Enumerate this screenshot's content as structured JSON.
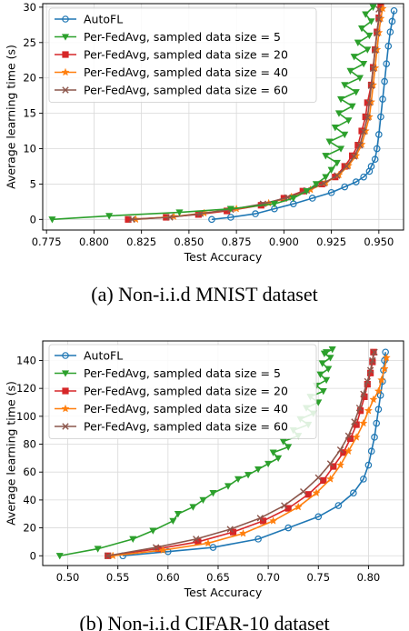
{
  "chart_data": [
    {
      "type": "line",
      "caption": "(a) Non-i.i.d MNIST dataset",
      "xlabel": "Test Accuracy",
      "ylabel": "Average learning time (s)",
      "xlim": [
        0.773,
        0.963
      ],
      "ylim": [
        -1.5,
        30.5
      ],
      "xticks": [
        0.775,
        0.8,
        0.825,
        0.85,
        0.875,
        0.9,
        0.925,
        0.95
      ],
      "xtick_labels": [
        "0.775",
        "0.800",
        "0.825",
        "0.850",
        "0.875",
        "0.900",
        "0.925",
        "0.950"
      ],
      "yticks": [
        0,
        5,
        10,
        15,
        20,
        25,
        30
      ],
      "ytick_labels": [
        "0",
        "5",
        "10",
        "15",
        "20",
        "25",
        "30"
      ],
      "grid": true,
      "legend_position": "top-left",
      "series": [
        {
          "name": "AutoFL",
          "color": "#1f77b4",
          "marker": "circle",
          "x": [
            0.862,
            0.872,
            0.885,
            0.895,
            0.905,
            0.915,
            0.925,
            0.932,
            0.938,
            0.942,
            0.945,
            0.946,
            0.948,
            0.949,
            0.95,
            0.951,
            0.952,
            0.953,
            0.954,
            0.955,
            0.956,
            0.957,
            0.958
          ],
          "y": [
            0,
            0.3,
            0.8,
            1.5,
            2.2,
            3.0,
            3.8,
            4.6,
            5.3,
            6.0,
            6.8,
            7.5,
            8.5,
            10.0,
            12.0,
            14.5,
            17.0,
            19.5,
            22.0,
            24.5,
            26.5,
            28.0,
            29.5
          ]
        },
        {
          "name": "Per-FedAvg, sampled data size = 5",
          "color": "#2ca02c",
          "marker": "triangle-down",
          "x": [
            0.778,
            0.808,
            0.845,
            0.872,
            0.895,
            0.905,
            0.912,
            0.917,
            0.922,
            0.925,
            0.928,
            0.922,
            0.93,
            0.924,
            0.932,
            0.927,
            0.934,
            0.929,
            0.936,
            0.93,
            0.938,
            0.932,
            0.94,
            0.935,
            0.942,
            0.937,
            0.944,
            0.939,
            0.945,
            0.941,
            0.946,
            0.943,
            0.947
          ],
          "y": [
            0,
            0.5,
            1.0,
            1.5,
            2.2,
            3.0,
            4.0,
            5.0,
            6.0,
            7.0,
            8.0,
            9.0,
            10.0,
            11.0,
            12.0,
            13.0,
            14.0,
            15.0,
            16.0,
            17.0,
            18.0,
            19.0,
            20.0,
            21.0,
            22.0,
            23.0,
            24.0,
            25.0,
            26.0,
            27.0,
            28.0,
            29.0,
            30.0
          ]
        },
        {
          "name": "Per-FedAvg, sampled data size = 20",
          "color": "#d62728",
          "marker": "square",
          "x": [
            0.818,
            0.838,
            0.855,
            0.87,
            0.888,
            0.9,
            0.91,
            0.92,
            0.927,
            0.932,
            0.936,
            0.939,
            0.941,
            0.943,
            0.944,
            0.946,
            0.947,
            0.948,
            0.949,
            0.95,
            0.951
          ],
          "y": [
            0,
            0.3,
            0.7,
            1.2,
            2.0,
            3.0,
            4.0,
            5.0,
            6.0,
            7.5,
            9.0,
            10.5,
            12.5,
            14.5,
            16.5,
            19.0,
            21.5,
            24.0,
            26.5,
            28.5,
            30.0
          ]
        },
        {
          "name": "Per-FedAvg, sampled data size = 40",
          "color": "#ff7f0e",
          "marker": "star",
          "x": [
            0.822,
            0.842,
            0.858,
            0.875,
            0.892,
            0.904,
            0.914,
            0.922,
            0.929,
            0.934,
            0.938,
            0.941,
            0.943,
            0.945,
            0.946,
            0.947,
            0.948,
            0.949,
            0.95,
            0.951,
            0.952
          ],
          "y": [
            0,
            0.4,
            0.9,
            1.5,
            2.3,
            3.2,
            4.2,
            5.2,
            6.3,
            7.6,
            9.0,
            10.6,
            12.5,
            14.5,
            16.6,
            19.0,
            21.4,
            24.0,
            26.4,
            28.4,
            29.8
          ]
        },
        {
          "name": "Per-FedAvg, sampled data size = 60",
          "color": "#8c564b",
          "marker": "x",
          "x": [
            0.82,
            0.84,
            0.856,
            0.872,
            0.889,
            0.902,
            0.912,
            0.921,
            0.928,
            0.933,
            0.937,
            0.94,
            0.942,
            0.944,
            0.945,
            0.946,
            0.947,
            0.948,
            0.949,
            0.95,
            0.95
          ],
          "y": [
            0,
            0.3,
            0.8,
            1.4,
            2.2,
            3.1,
            4.1,
            5.1,
            6.2,
            7.5,
            8.9,
            10.5,
            12.4,
            14.4,
            16.5,
            18.9,
            21.3,
            23.9,
            26.3,
            28.3,
            29.7
          ]
        }
      ]
    },
    {
      "type": "line",
      "caption": "(b) Non-i.i.d CIFAR-10 dataset",
      "xlabel": "Test Accuracy",
      "ylabel": "Average learning time (s)",
      "xlim": [
        0.475,
        0.835
      ],
      "ylim": [
        -7,
        154
      ],
      "xticks": [
        0.5,
        0.55,
        0.6,
        0.65,
        0.7,
        0.75,
        0.8
      ],
      "xtick_labels": [
        "0.50",
        "0.55",
        "0.60",
        "0.65",
        "0.70",
        "0.75",
        "0.80"
      ],
      "yticks": [
        0,
        20,
        40,
        60,
        80,
        100,
        120,
        140
      ],
      "ytick_labels": [
        "0",
        "20",
        "40",
        "60",
        "80",
        "100",
        "120",
        "140"
      ],
      "grid": true,
      "legend_position": "top-left",
      "series": [
        {
          "name": "AutoFL",
          "color": "#1f77b4",
          "marker": "circle",
          "x": [
            0.555,
            0.6,
            0.645,
            0.69,
            0.72,
            0.75,
            0.77,
            0.785,
            0.795,
            0.8,
            0.803,
            0.806,
            0.808,
            0.81,
            0.812,
            0.814,
            0.815,
            0.816,
            0.817
          ],
          "y": [
            0,
            3,
            6,
            12,
            20,
            28,
            36,
            45,
            55,
            65,
            75,
            85,
            95,
            105,
            115,
            125,
            133,
            140,
            146
          ]
        },
        {
          "name": "Per-FedAvg, sampled data size = 5",
          "color": "#2ca02c",
          "marker": "triangle-down",
          "x": [
            0.492,
            0.53,
            0.565,
            0.585,
            0.605,
            0.61,
            0.625,
            0.635,
            0.645,
            0.66,
            0.67,
            0.68,
            0.69,
            0.7,
            0.71,
            0.705,
            0.72,
            0.715,
            0.73,
            0.725,
            0.74,
            0.732,
            0.745,
            0.738,
            0.75,
            0.742,
            0.755,
            0.748,
            0.758,
            0.752,
            0.76,
            0.754,
            0.762,
            0.756,
            0.764,
            0.758
          ],
          "y": [
            0,
            5,
            12,
            18,
            25,
            30,
            35,
            40,
            45,
            50,
            55,
            58,
            62,
            66,
            70,
            74,
            78,
            82,
            86,
            90,
            94,
            98,
            102,
            106,
            110,
            114,
            118,
            122,
            126,
            130,
            134,
            138,
            142,
            145,
            148,
            146
          ]
        },
        {
          "name": "Per-FedAvg, sampled data size = 20",
          "color": "#d62728",
          "marker": "square",
          "x": [
            0.54,
            0.59,
            0.63,
            0.665,
            0.695,
            0.72,
            0.74,
            0.755,
            0.765,
            0.775,
            0.782,
            0.788,
            0.792,
            0.796,
            0.799,
            0.802,
            0.804,
            0.805
          ],
          "y": [
            0,
            5,
            10,
            17,
            25,
            34,
            44,
            54,
            64,
            74,
            84,
            94,
            104,
            114,
            123,
            131,
            139,
            146
          ]
        },
        {
          "name": "Per-FedAvg, sampled data size = 40",
          "color": "#ff7f0e",
          "marker": "star",
          "x": [
            0.545,
            0.595,
            0.64,
            0.675,
            0.705,
            0.73,
            0.748,
            0.762,
            0.772,
            0.78,
            0.788,
            0.795,
            0.8,
            0.805,
            0.81,
            0.813,
            0.816,
            0.818
          ],
          "y": [
            0,
            4,
            9,
            16,
            25,
            35,
            45,
            55,
            65,
            75,
            85,
            95,
            104,
            112,
            118,
            126,
            134,
            142
          ]
        },
        {
          "name": "Per-FedAvg, sampled data size = 60",
          "color": "#8c564b",
          "marker": "x",
          "x": [
            0.54,
            0.588,
            0.628,
            0.662,
            0.692,
            0.716,
            0.735,
            0.75,
            0.762,
            0.772,
            0.78,
            0.786,
            0.791,
            0.795,
            0.799,
            0.802,
            0.804,
            0.806
          ],
          "y": [
            0,
            6,
            12,
            19,
            27,
            36,
            46,
            56,
            66,
            76,
            86,
            96,
            106,
            116,
            125,
            133,
            140,
            146
          ]
        }
      ]
    }
  ]
}
